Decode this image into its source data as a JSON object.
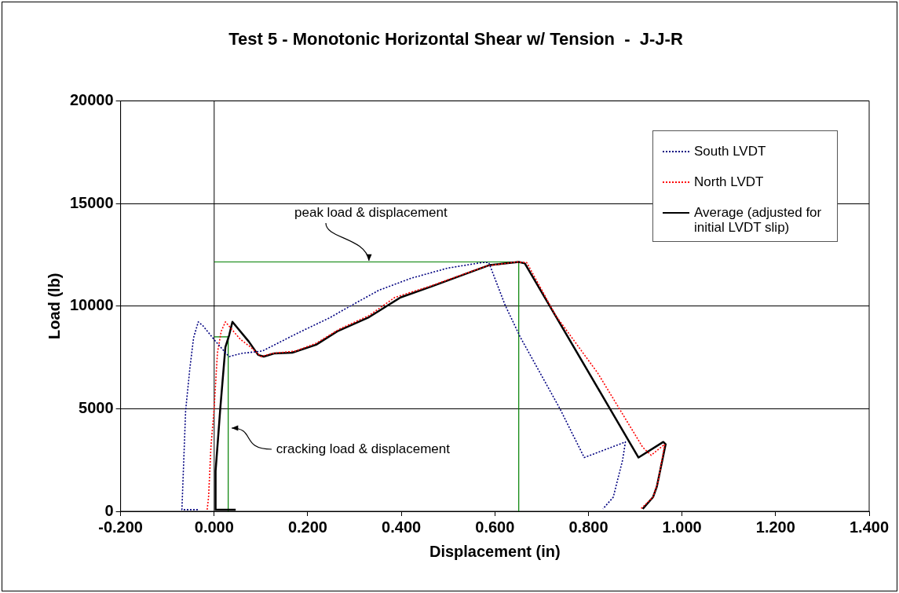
{
  "chart_data": {
    "type": "line",
    "title": "Test 5 - Monotonic Horizontal Shear w/ Tension  -  J-J-R",
    "xlabel": "Displacement (in)",
    "ylabel": "Load (lb)",
    "xlim": [
      -0.2,
      1.4
    ],
    "xticks": [
      {
        "value": -0.2,
        "label": "-0.200"
      },
      {
        "value": 0,
        "label": "0.000"
      },
      {
        "value": 0.2,
        "label": "0.200"
      },
      {
        "value": 0.4,
        "label": "0.400"
      },
      {
        "value": 0.6,
        "label": "0.600"
      },
      {
        "value": 0.8,
        "label": "0.800"
      },
      {
        "value": 1.0,
        "label": "1.000"
      },
      {
        "value": 1.2,
        "label": "1.200"
      },
      {
        "value": 1.4,
        "label": "1.400"
      }
    ],
    "ylim": [
      0,
      20000
    ],
    "yticks": [
      0,
      5000,
      10000,
      15000,
      20000
    ],
    "grid": "y",
    "legend": "top right",
    "marker": "none",
    "ref_lines": [
      {
        "axis": "x",
        "value": 0,
        "color": "#000000"
      }
    ],
    "annotations": [
      {
        "text": "peak load & displacement",
        "x": 0.331,
        "y": 12150
      },
      {
        "text": "cracking load & displacement",
        "x": 0.037,
        "y": 4040
      }
    ],
    "series": [
      {
        "name": "South LVDT",
        "color": "#000080",
        "line_style": "dotted",
        "x": [
          -0.035,
          -0.069,
          -0.061,
          -0.052,
          -0.044,
          -0.034,
          -0.024,
          0.002,
          0.024,
          0.032,
          0.057,
          0.103,
          0.179,
          0.246,
          0.297,
          0.352,
          0.42,
          0.499,
          0.572,
          0.587,
          0.622,
          0.654,
          0.739,
          0.791,
          0.879,
          0.873,
          0.853,
          0.831
        ],
        "values": [
          80,
          80,
          4920,
          6960,
          8460,
          9230,
          9040,
          8310,
          7730,
          7540,
          7690,
          7810,
          8690,
          9420,
          10080,
          10770,
          11350,
          11850,
          12120,
          12120,
          10040,
          8500,
          5000,
          2620,
          3380,
          2500,
          690,
          120
        ]
      },
      {
        "name": "North LVDT",
        "color": "#ff0000",
        "line_style": "dotted",
        "x": [
          -0.015,
          -0.012,
          -0.007,
          0.0,
          0.007,
          0.015,
          0.024,
          0.056,
          0.078,
          0.1,
          0.123,
          0.174,
          0.218,
          0.268,
          0.331,
          0.386,
          0.46,
          0.583,
          0.646,
          0.668,
          0.73,
          0.82,
          0.916,
          0.934,
          0.963,
          0.949,
          0.938,
          0.912
        ],
        "values": [
          80,
          690,
          3120,
          5040,
          7730,
          8770,
          9230,
          8380,
          8000,
          7540,
          7690,
          7810,
          8190,
          8880,
          9540,
          10420,
          10960,
          11960,
          12150,
          12120,
          9540,
          6730,
          3120,
          2730,
          3270,
          1460,
          690,
          120
        ]
      },
      {
        "name": "Average (adjusted for initial LVDT slip)",
        "color": "#000000",
        "line_style": "solid",
        "x": [
          0.046,
          0.003,
          0.003,
          0.013,
          0.024,
          0.032,
          0.039,
          0.074,
          0.094,
          0.106,
          0.128,
          0.167,
          0.218,
          0.263,
          0.331,
          0.398,
          0.465,
          0.589,
          0.651,
          0.664,
          0.907,
          0.96,
          0.965,
          0.946,
          0.938,
          0.916
        ],
        "values": [
          80,
          80,
          1960,
          5000,
          8000,
          8580,
          9230,
          8270,
          7620,
          7540,
          7690,
          7730,
          8120,
          8770,
          9460,
          10420,
          10960,
          12000,
          12150,
          12080,
          2620,
          3380,
          3270,
          1190,
          690,
          120
        ]
      },
      {
        "color": "#008000",
        "line_style": "solid",
        "x": [
          0,
          0.651,
          0.651
        ],
        "values": [
          12150,
          12150,
          0
        ]
      },
      {
        "color": "#008000",
        "line_style": "solid",
        "x": [
          0,
          0.03,
          0.03
        ],
        "values": [
          8500,
          8500,
          0
        ]
      }
    ]
  }
}
